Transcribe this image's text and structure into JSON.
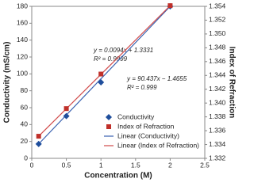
{
  "chart_data": {
    "type": "scatter",
    "xlabel": "Concentration (M)",
    "ylabel": "Conductivity (mS/cm)",
    "y2label": "Index of Refraction",
    "xlim": [
      0,
      2.5
    ],
    "xticks": [
      0,
      0.5,
      1,
      1.5,
      2,
      2.5
    ],
    "ylim": [
      0,
      180
    ],
    "yticks": [
      0,
      20,
      40,
      60,
      80,
      100,
      120,
      140,
      160,
      180
    ],
    "y2lim": [
      1.332,
      1.354
    ],
    "y2ticks": [
      {
        "value": 1.332,
        "label": "1.332"
      },
      {
        "value": 1.334,
        "label": "1.334"
      },
      {
        "value": 1.336,
        "label": "1.336"
      },
      {
        "value": 1.338,
        "label": "1.338"
      },
      {
        "value": 1.34,
        "label": "1.340"
      },
      {
        "value": 1.342,
        "label": "1.342"
      },
      {
        "value": 1.344,
        "label": "1.344"
      },
      {
        "value": 1.346,
        "label": "1.346"
      },
      {
        "value": 1.348,
        "label": "1.348"
      },
      {
        "value": 1.35,
        "label": "1.350"
      },
      {
        "value": 1.352,
        "label": "1.352"
      },
      {
        "value": 1.354,
        "label": "1.354"
      }
    ],
    "series": [
      {
        "name": "Conductivity",
        "color": "#1f4e9c",
        "marker": "diamond",
        "x": [
          0.1,
          0.5,
          1,
          2
        ],
        "values": [
          17,
          50,
          90,
          180
        ]
      },
      {
        "name": "Index of Refraction",
        "color": "#c0302a",
        "marker": "square",
        "axis": "y2",
        "x": [
          0.1,
          0.5,
          1,
          2
        ],
        "values": [
          1.3352,
          1.3392,
          1.3442,
          1.3541
        ]
      },
      {
        "name": "Linear (Conductivity)",
        "color": "#3a62b0",
        "marker": "line",
        "x": [
          0.1,
          2
        ],
        "values": [
          17,
          180
        ]
      },
      {
        "name": "Linear (Index of Refraction)",
        "color": "#d04a4a",
        "marker": "line",
        "axis": "y2",
        "x": [
          0.1,
          2
        ],
        "values": [
          1.3352,
          1.3541
        ]
      }
    ],
    "annotations": [
      "y = 0.0094x + 1.3331",
      "R² = 0.9999",
      "y = 90.437x − 1.4655",
      "R² = 0.999"
    ]
  }
}
